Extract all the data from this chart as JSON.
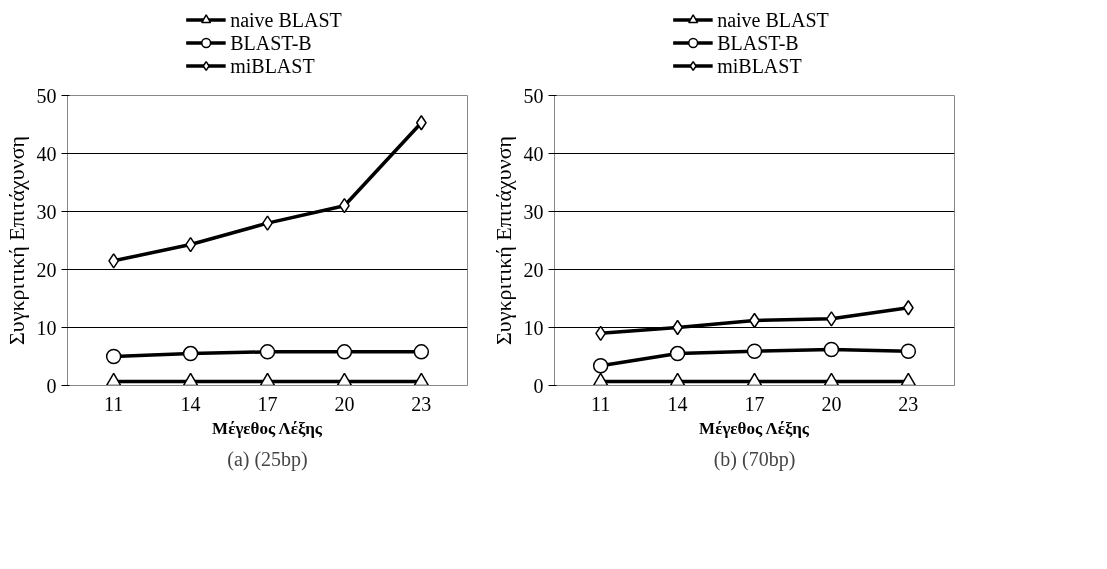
{
  "chart_data": [
    {
      "type": "line",
      "categories": [
        "11",
        "14",
        "17",
        "20",
        "23"
      ],
      "xlabel": "Μέγεθος Λέξης",
      "ylabel": "Συγκριτική Επιτάχυνση",
      "ylim": [
        0,
        50
      ],
      "yticks": [
        0,
        10,
        20,
        30,
        40,
        50
      ],
      "grid": "y",
      "legend": "top",
      "annotations": [
        "(a) (25bp)"
      ],
      "series": [
        {
          "name": "naive BLAST",
          "color": "#000000",
          "marker": "triangle",
          "values": [
            0.7,
            0.7,
            0.7,
            0.7,
            0.7
          ]
        },
        {
          "name": "BLAST-B",
          "color": "#000000",
          "marker": "circle",
          "values": [
            5.0,
            5.5,
            5.8,
            5.8,
            5.8
          ]
        },
        {
          "name": "miBLAST",
          "color": "#000000",
          "marker": "diamond",
          "values": [
            21.5,
            24.3,
            28.0,
            31.0,
            45.3
          ]
        }
      ]
    },
    {
      "type": "line",
      "categories": [
        "11",
        "14",
        "17",
        "20",
        "23"
      ],
      "xlabel": "Μέγεθος Λέξης",
      "ylabel": "Συγκριτική Επιτάχυνση",
      "ylim": [
        0,
        50
      ],
      "yticks": [
        0,
        10,
        20,
        30,
        40,
        50
      ],
      "grid": "y",
      "legend": "top",
      "annotations": [
        "(b) (70bp)"
      ],
      "series": [
        {
          "name": "naive BLAST",
          "color": "#000000",
          "marker": "triangle",
          "values": [
            0.7,
            0.7,
            0.7,
            0.7,
            0.7
          ]
        },
        {
          "name": "BLAST-B",
          "color": "#000000",
          "marker": "circle",
          "values": [
            3.4,
            5.5,
            5.9,
            6.2,
            5.9
          ]
        },
        {
          "name": "miBLAST",
          "color": "#000000",
          "marker": "diamond",
          "values": [
            9.0,
            10.0,
            11.2,
            11.5,
            13.4
          ]
        }
      ]
    }
  ]
}
